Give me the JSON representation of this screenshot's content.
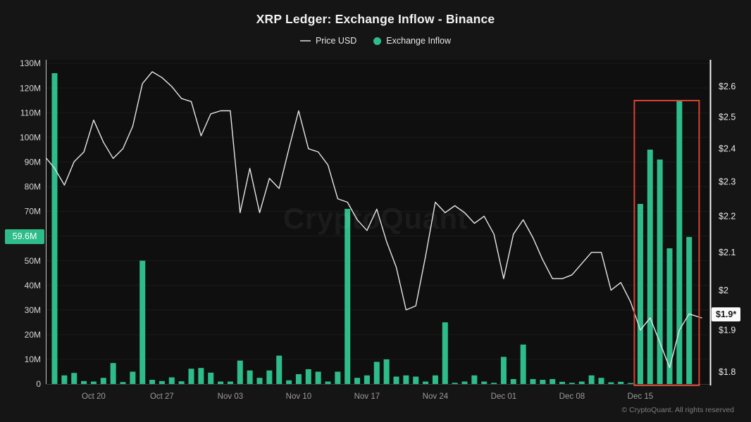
{
  "title": "XRP Ledger: Exchange Inflow - Binance",
  "legend": {
    "price": {
      "label": "Price USD",
      "marker": "line-dash",
      "marker_color": "#a9adb1"
    },
    "inflow": {
      "label": "Exchange Inflow",
      "marker": "dot",
      "marker_color": "#2ebd8a"
    }
  },
  "watermark": "CryptoQuant",
  "copyright": "© CryptoQuant. All rights reserved",
  "colors": {
    "background": "#151515",
    "plot_background": "#0f0f10",
    "bar_green": "#2ebd8a",
    "price_line": "#e4e6e7",
    "highlight_box_red": "#d94130",
    "axis_text": "#d6d6d6",
    "x_axis_text": "#9c9c9c"
  },
  "chart_data": {
    "type": "bar+line",
    "title": "XRP Ledger: Exchange Inflow - Binance",
    "x_dates": [
      "Oct 16",
      "Oct 17",
      "Oct 18",
      "Oct 19",
      "Oct 20",
      "Oct 21",
      "Oct 22",
      "Oct 23",
      "Oct 24",
      "Oct 25",
      "Oct 26",
      "Oct 27",
      "Oct 28",
      "Oct 29",
      "Oct 30",
      "Oct 31",
      "Nov 01",
      "Nov 02",
      "Nov 03",
      "Nov 04",
      "Nov 05",
      "Nov 06",
      "Nov 07",
      "Nov 08",
      "Nov 09",
      "Nov 10",
      "Nov 11",
      "Nov 12",
      "Nov 13",
      "Nov 14",
      "Nov 15",
      "Nov 16",
      "Nov 17",
      "Nov 18",
      "Nov 19",
      "Nov 20",
      "Nov 21",
      "Nov 22",
      "Nov 23",
      "Nov 24",
      "Nov 25",
      "Nov 26",
      "Nov 27",
      "Nov 28",
      "Nov 29",
      "Nov 30",
      "Dec 01",
      "Dec 02",
      "Dec 03",
      "Dec 04",
      "Dec 05",
      "Dec 06",
      "Dec 07",
      "Dec 08",
      "Dec 09",
      "Dec 10",
      "Dec 11",
      "Dec 12",
      "Dec 13",
      "Dec 14",
      "Dec 15",
      "Dec 16",
      "Dec 17",
      "Dec 18",
      "Dec 19",
      "Dec 20"
    ],
    "x_tick_labels": [
      "Oct 20",
      "Oct 27",
      "Nov 03",
      "Nov 10",
      "Nov 17",
      "Nov 24",
      "Dec 01",
      "Dec 08",
      "Dec 15"
    ],
    "series": [
      {
        "name": "Exchange Inflow",
        "type": "bar",
        "axis": "left",
        "color": "#2ebd8a",
        "unit": "millions",
        "values": [
          126,
          3.5,
          4.5,
          1.2,
          1,
          2.5,
          8.5,
          0.8,
          5,
          50,
          1.7,
          1.2,
          2.7,
          1.1,
          6.2,
          6.5,
          4.6,
          1,
          1,
          9.5,
          5.5,
          2.5,
          5.5,
          11.5,
          1.5,
          4,
          6,
          5,
          1,
          5,
          71,
          2.5,
          3.5,
          9,
          10,
          3,
          3.5,
          3,
          1,
          3.5,
          25,
          0.5,
          1,
          3.5,
          1,
          0.5,
          11,
          2,
          16,
          2,
          1.7,
          2,
          0.9,
          0.5,
          1,
          3.5,
          2.5,
          0.7,
          0.9,
          0.4,
          73,
          95,
          91,
          55,
          115,
          59.6
        ]
      },
      {
        "name": "Price USD",
        "type": "line",
        "axis": "right",
        "color": "#e4e6e7",
        "unit": "USD",
        "edge_start": 2.37,
        "edge_end": 1.93,
        "values": [
          2.34,
          2.29,
          2.36,
          2.39,
          2.49,
          2.42,
          2.37,
          2.4,
          2.47,
          2.61,
          2.65,
          2.63,
          2.6,
          2.56,
          2.55,
          2.44,
          2.51,
          2.52,
          2.52,
          2.21,
          2.34,
          2.21,
          2.31,
          2.28,
          2.4,
          2.52,
          2.4,
          2.39,
          2.35,
          2.25,
          2.24,
          2.19,
          2.16,
          2.22,
          2.13,
          2.06,
          1.95,
          1.96,
          2.09,
          2.24,
          2.21,
          2.23,
          2.21,
          2.18,
          2.2,
          2.15,
          2.03,
          2.15,
          2.19,
          2.14,
          2.08,
          2.03,
          2.03,
          2.04,
          2.07,
          2.1,
          2.1,
          2.0,
          2.02,
          1.97,
          1.9,
          1.93,
          1.87,
          1.81,
          1.9,
          1.94
        ]
      }
    ],
    "left_axis": {
      "title": "Exchange Inflow",
      "max_millions": 130,
      "tick_values_millions": [
        0,
        10,
        20,
        30,
        40,
        50,
        70,
        80,
        90,
        100,
        110,
        120,
        130
      ],
      "tick_labels": [
        "0",
        "10M",
        "20M",
        "30M",
        "40M",
        "50M",
        "70M",
        "80M",
        "90M",
        "100M",
        "110M",
        "120M",
        "130M"
      ],
      "current_value_millions": 59.6,
      "current_value_label": "59.6M"
    },
    "right_axis": {
      "title": "Price USD",
      "scale": "log",
      "tick_values_usd": [
        2.6,
        2.5,
        2.4,
        2.3,
        2.2,
        2.1,
        2.0,
        1.9,
        1.8
      ],
      "tick_labels": [
        "$2.6",
        "$2.5",
        "$2.4",
        "$2.3",
        "$2.2",
        "$2.1",
        "$2",
        "$1.9",
        "$1.8"
      ],
      "current_price_label": "$1.9*"
    },
    "highlight_box": {
      "from_date": "Dec 15",
      "to_date": "Dec 20",
      "color": "#d94130"
    },
    "grid": "horizontal-faint",
    "legend_position": "top-center"
  }
}
